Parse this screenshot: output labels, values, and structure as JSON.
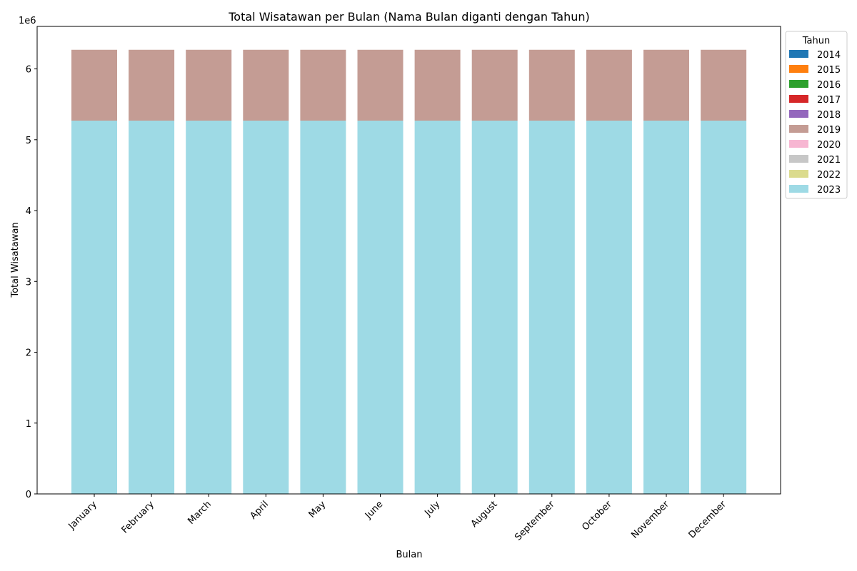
{
  "chart_data": {
    "type": "bar",
    "stacked": true,
    "title": "Total Wisatawan per Bulan (Nama Bulan diganti dengan Tahun)",
    "xlabel": "Bulan",
    "ylabel": "Total Wisatawan",
    "y_scale_label": "1e6",
    "ylim": [
      0,
      6600000
    ],
    "yticks": [
      0,
      1,
      2,
      3,
      4,
      5,
      6
    ],
    "grid": false,
    "legend_title": "Tahun",
    "legend_placement": "outside-right-top",
    "categories": [
      "January",
      "February",
      "March",
      "April",
      "May",
      "June",
      "July",
      "August",
      "September",
      "October",
      "November",
      "December"
    ],
    "series": [
      {
        "name": "2014",
        "color": "#1f77b4",
        "values": [
          0,
          0,
          0,
          0,
          0,
          0,
          0,
          0,
          0,
          0,
          0,
          0
        ]
      },
      {
        "name": "2015",
        "color": "#ff7f0e",
        "values": [
          0,
          0,
          0,
          0,
          0,
          0,
          0,
          0,
          0,
          0,
          0,
          0
        ]
      },
      {
        "name": "2016",
        "color": "#2ca02c",
        "values": [
          0,
          0,
          0,
          0,
          0,
          0,
          0,
          0,
          0,
          0,
          0,
          0
        ]
      },
      {
        "name": "2017",
        "color": "#d62728",
        "values": [
          0,
          0,
          0,
          0,
          0,
          0,
          0,
          0,
          0,
          0,
          0,
          0
        ]
      },
      {
        "name": "2018",
        "color": "#9467bd",
        "values": [
          0,
          0,
          0,
          0,
          0,
          0,
          0,
          0,
          0,
          0,
          0,
          0
        ]
      },
      {
        "name": "2019",
        "color": "#c49c94",
        "values": [
          1000000,
          1000000,
          1000000,
          1000000,
          1000000,
          1000000,
          1000000,
          1000000,
          1000000,
          1000000,
          1000000,
          1000000
        ]
      },
      {
        "name": "2020",
        "color": "#f7b6d2",
        "values": [
          0,
          0,
          0,
          0,
          0,
          0,
          0,
          0,
          0,
          0,
          0,
          0
        ]
      },
      {
        "name": "2021",
        "color": "#c7c7c7",
        "values": [
          0,
          0,
          0,
          0,
          0,
          0,
          0,
          0,
          0,
          0,
          0,
          0
        ]
      },
      {
        "name": "2022",
        "color": "#dbdb8d",
        "values": [
          0,
          0,
          0,
          0,
          0,
          0,
          0,
          0,
          0,
          0,
          0,
          0
        ]
      },
      {
        "name": "2023",
        "color": "#9edae5",
        "values": [
          5270000,
          5270000,
          5270000,
          5270000,
          5270000,
          5270000,
          5270000,
          5270000,
          5270000,
          5270000,
          5270000,
          5270000
        ]
      }
    ],
    "stack_order": [
      "2023",
      "2014",
      "2015",
      "2016",
      "2017",
      "2018",
      "2019",
      "2020",
      "2021",
      "2022"
    ]
  }
}
